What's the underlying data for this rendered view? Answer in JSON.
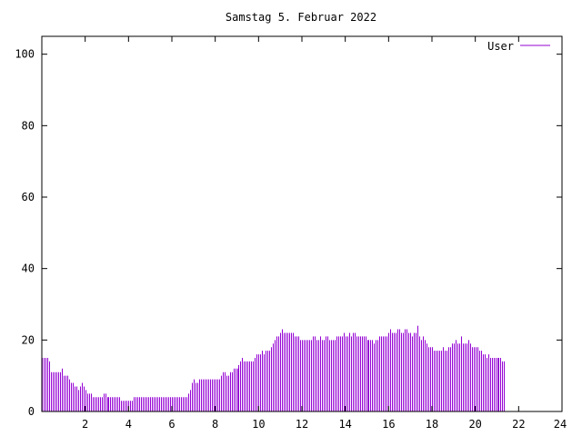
{
  "chart_data": {
    "type": "bar",
    "title": "Samstag 5. Februar 2022",
    "xlabel": "",
    "ylabel": "",
    "xlim": [
      0,
      24
    ],
    "ylim": [
      0,
      105
    ],
    "x_ticks": [
      2,
      4,
      6,
      8,
      10,
      12,
      14,
      16,
      18,
      20,
      22,
      24
    ],
    "y_ticks": [
      0,
      20,
      40,
      60,
      80,
      100
    ],
    "x_tick_labels": [
      "2",
      "4",
      "6",
      "8",
      "10",
      "12",
      "14",
      "16",
      "18",
      "20",
      "22",
      "24"
    ],
    "y_tick_labels": [
      "0",
      "20",
      "40",
      "60",
      "80",
      "100"
    ],
    "grid": false,
    "legend_position": "top-right",
    "series": [
      {
        "name": "User",
        "color": "#9400d3",
        "x_interval_minutes": 5,
        "values": [
          15,
          15,
          15,
          15,
          14,
          11,
          11,
          11,
          11,
          11,
          11,
          12,
          10,
          10,
          10,
          9,
          8,
          8,
          7,
          7,
          6,
          7,
          8,
          7,
          6,
          5,
          5,
          5,
          4,
          4,
          4,
          4,
          4,
          4,
          5,
          5,
          4,
          4,
          4,
          4,
          4,
          4,
          4,
          4,
          3,
          3,
          3,
          3,
          3,
          3,
          3,
          4,
          4,
          4,
          4,
          4,
          4,
          4,
          4,
          4,
          4,
          4,
          4,
          4,
          4,
          4,
          4,
          4,
          4,
          4,
          4,
          4,
          4,
          4,
          4,
          4,
          4,
          4,
          4,
          4,
          4,
          5,
          6,
          8,
          9,
          8,
          8,
          9,
          9,
          9,
          9,
          9,
          9,
          9,
          9,
          9,
          9,
          9,
          9,
          10,
          11,
          11,
          10,
          10,
          11,
          11,
          12,
          12,
          12,
          13,
          14,
          15,
          14,
          14,
          14,
          14,
          14,
          14,
          15,
          16,
          16,
          16,
          17,
          16,
          17,
          17,
          17,
          18,
          19,
          20,
          21,
          21,
          22,
          23,
          22,
          22,
          22,
          22,
          22,
          22,
          21,
          21,
          21,
          20,
          20,
          20,
          20,
          20,
          20,
          20,
          21,
          21,
          20,
          20,
          21,
          20,
          20,
          21,
          21,
          20,
          20,
          20,
          20,
          21,
          21,
          21,
          21,
          22,
          21,
          21,
          22,
          21,
          22,
          22,
          21,
          21,
          21,
          21,
          21,
          21,
          20,
          20,
          20,
          20,
          19,
          20,
          20,
          21,
          21,
          21,
          21,
          21,
          22,
          23,
          22,
          22,
          22,
          23,
          23,
          22,
          22,
          23,
          23,
          22,
          22,
          21,
          22,
          22,
          24,
          21,
          20,
          21,
          20,
          19,
          18,
          18,
          18,
          17,
          17,
          17,
          17,
          17,
          18,
          17,
          17,
          18,
          18,
          19,
          19,
          20,
          19,
          19,
          21,
          19,
          19,
          19,
          20,
          19,
          18,
          18,
          18,
          18,
          17,
          17,
          16,
          16,
          15,
          16,
          15,
          15,
          15,
          15,
          15,
          15,
          15,
          14,
          14
        ]
      }
    ]
  }
}
